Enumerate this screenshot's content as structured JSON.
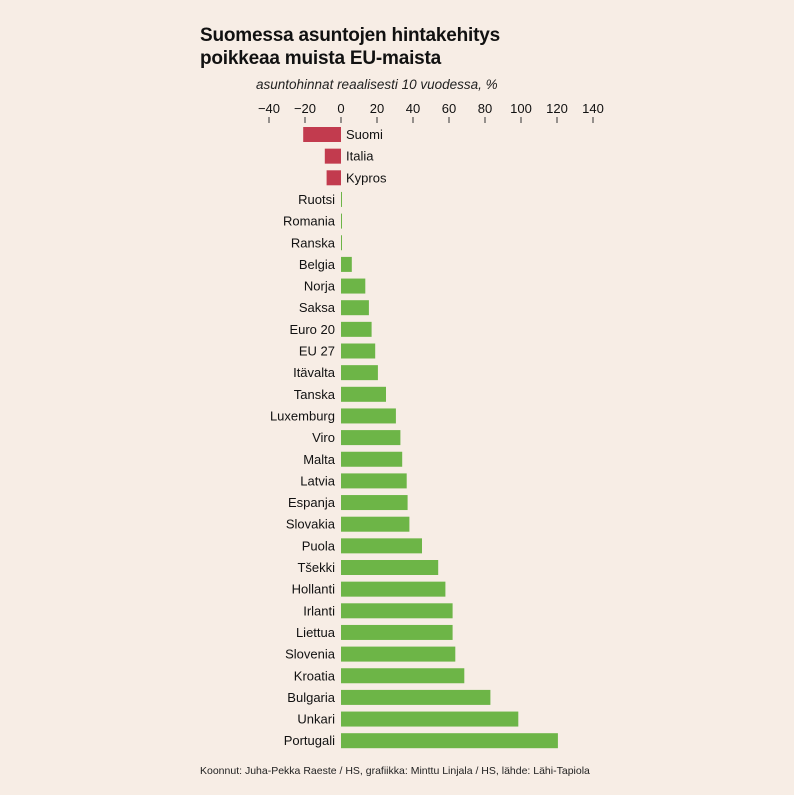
{
  "header": {
    "title_line1": "Suomessa asuntojen hintakehitys",
    "title_line2": "poikkeaa muista EU-maista",
    "subtitle": "asuntohinnat reaalisesti 10 vuodessa, %"
  },
  "footer": {
    "credits": "Koonnut: Juha-Pekka Raeste / HS, grafiikka: Minttu Linjala / HS, lähde: Lähi-Tapiola"
  },
  "colors": {
    "negative": "#c23b4e",
    "positive": "#6db547",
    "axis": "#333333"
  },
  "chart_data": {
    "type": "bar",
    "orientation": "horizontal",
    "title": "Suomessa asuntojen hintakehitys poikkeaa muista EU-maista",
    "xlabel": "asuntohinnat reaalisesti 10 vuodessa, %",
    "ylabel": "",
    "xlim": [
      -40,
      140
    ],
    "xticks": [
      -40,
      -20,
      0,
      20,
      40,
      60,
      80,
      100,
      120,
      140
    ],
    "xtick_labels": [
      "−40",
      "−20",
      "0",
      "20",
      "40",
      "60",
      "80",
      "100",
      "120",
      "140"
    ],
    "categories": [
      "Suomi",
      "Italia",
      "Kypros",
      "Ruotsi",
      "Romania",
      "Ranska",
      "Belgia",
      "Norja",
      "Saksa",
      "Euro 20",
      "EU 27",
      "Itävalta",
      "Tanska",
      "Luxemburg",
      "Viro",
      "Malta",
      "Latvia",
      "Espanja",
      "Slovakia",
      "Puola",
      "Tšekki",
      "Hollanti",
      "Irlanti",
      "Liettua",
      "Slovenia",
      "Kroatia",
      "Bulgaria",
      "Unkari",
      "Portugali"
    ],
    "values": [
      -21,
      -9,
      -8,
      0.5,
      0.5,
      0.5,
      6,
      13.5,
      15.5,
      17,
      19,
      20.5,
      25,
      30.5,
      33,
      34,
      36.5,
      37,
      38,
      45,
      54,
      58,
      62,
      62,
      63.5,
      68.5,
      83,
      98.5,
      120.5
    ]
  }
}
